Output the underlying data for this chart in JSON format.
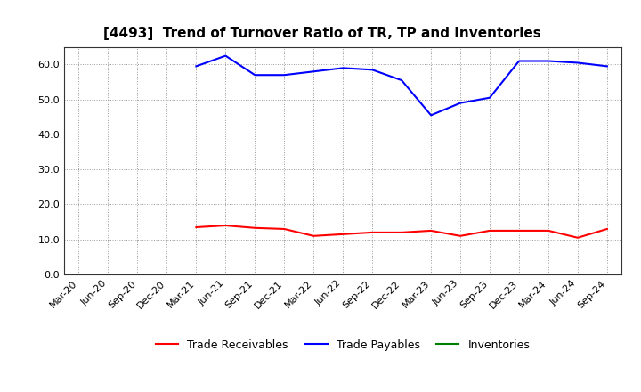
{
  "title": "[4493]  Trend of Turnover Ratio of TR, TP and Inventories",
  "x_labels": [
    "Mar-20",
    "Jun-20",
    "Sep-20",
    "Dec-20",
    "Mar-21",
    "Jun-21",
    "Sep-21",
    "Dec-21",
    "Mar-22",
    "Jun-22",
    "Sep-22",
    "Dec-22",
    "Mar-23",
    "Jun-23",
    "Sep-23",
    "Dec-23",
    "Mar-24",
    "Jun-24",
    "Sep-24"
  ],
  "trade_receivables": [
    null,
    null,
    null,
    null,
    13.5,
    14.0,
    13.3,
    13.0,
    11.0,
    11.5,
    12.0,
    12.0,
    12.5,
    11.0,
    12.5,
    12.5,
    12.5,
    10.5,
    13.0
  ],
  "trade_payables": [
    null,
    null,
    null,
    null,
    59.5,
    62.5,
    57.0,
    57.0,
    58.0,
    59.0,
    58.5,
    55.5,
    45.5,
    49.0,
    50.5,
    61.0,
    61.0,
    60.5,
    59.5
  ],
  "inventories": [
    null,
    null,
    null,
    null,
    null,
    null,
    null,
    null,
    null,
    null,
    null,
    null,
    null,
    null,
    null,
    null,
    null,
    null,
    null
  ],
  "ylim": [
    0.0,
    65.0
  ],
  "yticks": [
    0.0,
    10.0,
    20.0,
    30.0,
    40.0,
    50.0,
    60.0
  ],
  "line_colors": {
    "trade_receivables": "#ff0000",
    "trade_payables": "#0000ff",
    "inventories": "#008000"
  },
  "legend_labels": [
    "Trade Receivables",
    "Trade Payables",
    "Inventories"
  ],
  "background_color": "#ffffff",
  "grid_color": "#999999",
  "title_fontsize": 11,
  "tick_fontsize": 8,
  "legend_fontsize": 9
}
